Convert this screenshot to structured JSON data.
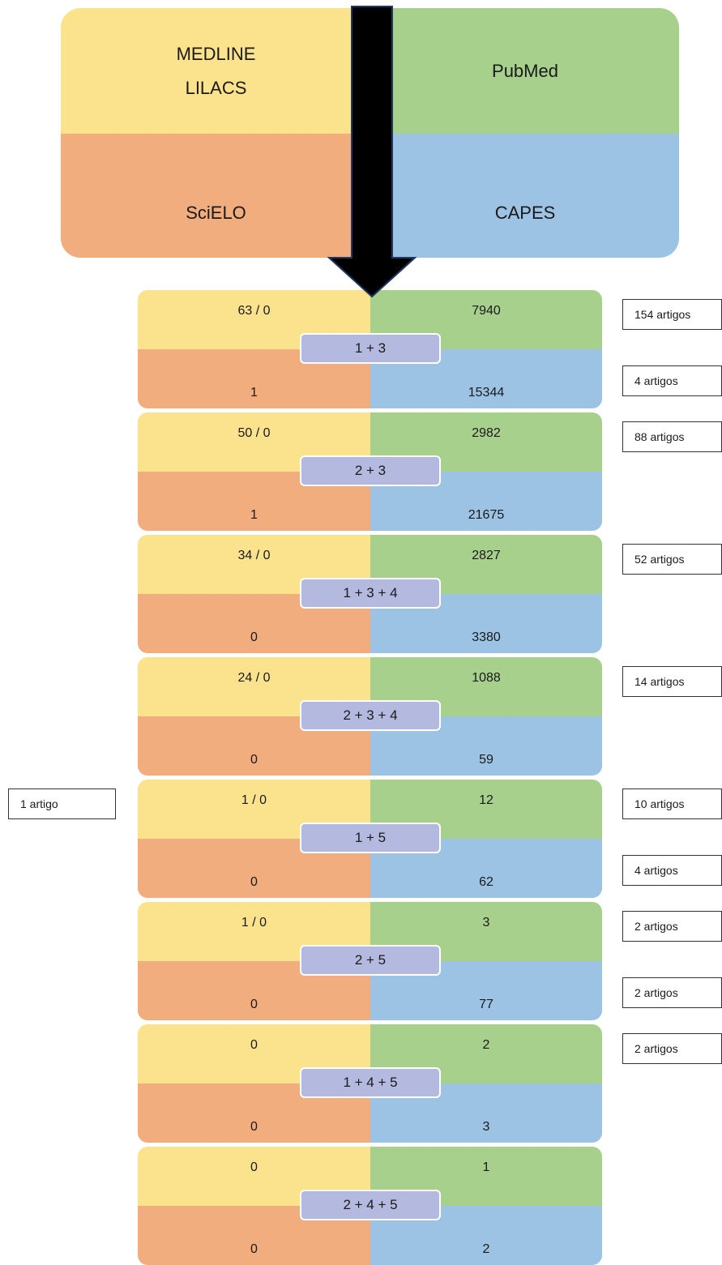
{
  "databases": {
    "top_left_lines": [
      "MEDLINE",
      "LILACS"
    ],
    "top_right": "PubMed",
    "bottom_left": "SciELO",
    "bottom_right": "CAPES"
  },
  "blocks": [
    {
      "combo": "1 + 3",
      "medline_lilacs": "63 / 0",
      "pubmed": "7940",
      "scielo": "1",
      "capes": "15344"
    },
    {
      "combo": "2 + 3",
      "medline_lilacs": "50 / 0",
      "pubmed": "2982",
      "scielo": "1",
      "capes": "21675"
    },
    {
      "combo": "1 + 3 + 4",
      "medline_lilacs": "34 / 0",
      "pubmed": "2827",
      "scielo": "0",
      "capes": "3380"
    },
    {
      "combo": "2 + 3 + 4",
      "medline_lilacs": "24 / 0",
      "pubmed": "1088",
      "scielo": "0",
      "capes": "59"
    },
    {
      "combo": "1 + 5",
      "medline_lilacs": "1 / 0",
      "pubmed": "12",
      "scielo": "0",
      "capes": "62"
    },
    {
      "combo": "2 + 5",
      "medline_lilacs": "1 / 0",
      "pubmed": "3",
      "scielo": "0",
      "capes": "77"
    },
    {
      "combo": "1 + 4 + 5",
      "medline_lilacs": "0",
      "pubmed": "2",
      "scielo": "0",
      "capes": "3"
    },
    {
      "combo": "2 + 4 + 5",
      "medline_lilacs": "0",
      "pubmed": "1",
      "scielo": "0",
      "capes": "2"
    }
  ],
  "results": {
    "left": [
      {
        "block": 4,
        "text": "1 artigo"
      }
    ],
    "right": [
      {
        "block": 0,
        "row": "top",
        "text": "154 artigos"
      },
      {
        "block": 0,
        "row": "bottom",
        "text": "4 artigos"
      },
      {
        "block": 1,
        "row": "top",
        "text": "88 artigos"
      },
      {
        "block": 2,
        "row": "top",
        "text": "52 artigos"
      },
      {
        "block": 3,
        "row": "top",
        "text": "14 artigos"
      },
      {
        "block": 4,
        "row": "top",
        "text": "10 artigos"
      },
      {
        "block": 4,
        "row": "bottom",
        "text": "4 artigos"
      },
      {
        "block": 5,
        "row": "top",
        "text": "2 artigos"
      },
      {
        "block": 5,
        "row": "bottom",
        "text": "2 artigos"
      },
      {
        "block": 6,
        "row": "top",
        "text": "2 artigos"
      }
    ]
  },
  "colors": {
    "medline_lilacs": "#fbe38e",
    "pubmed": "#a8d08d",
    "scielo": "#f2ad7e",
    "capes": "#9cc3e4",
    "combo_badge": "#b4b9e0",
    "arrow": "#000000",
    "arrow_outline": "#1f3864"
  }
}
